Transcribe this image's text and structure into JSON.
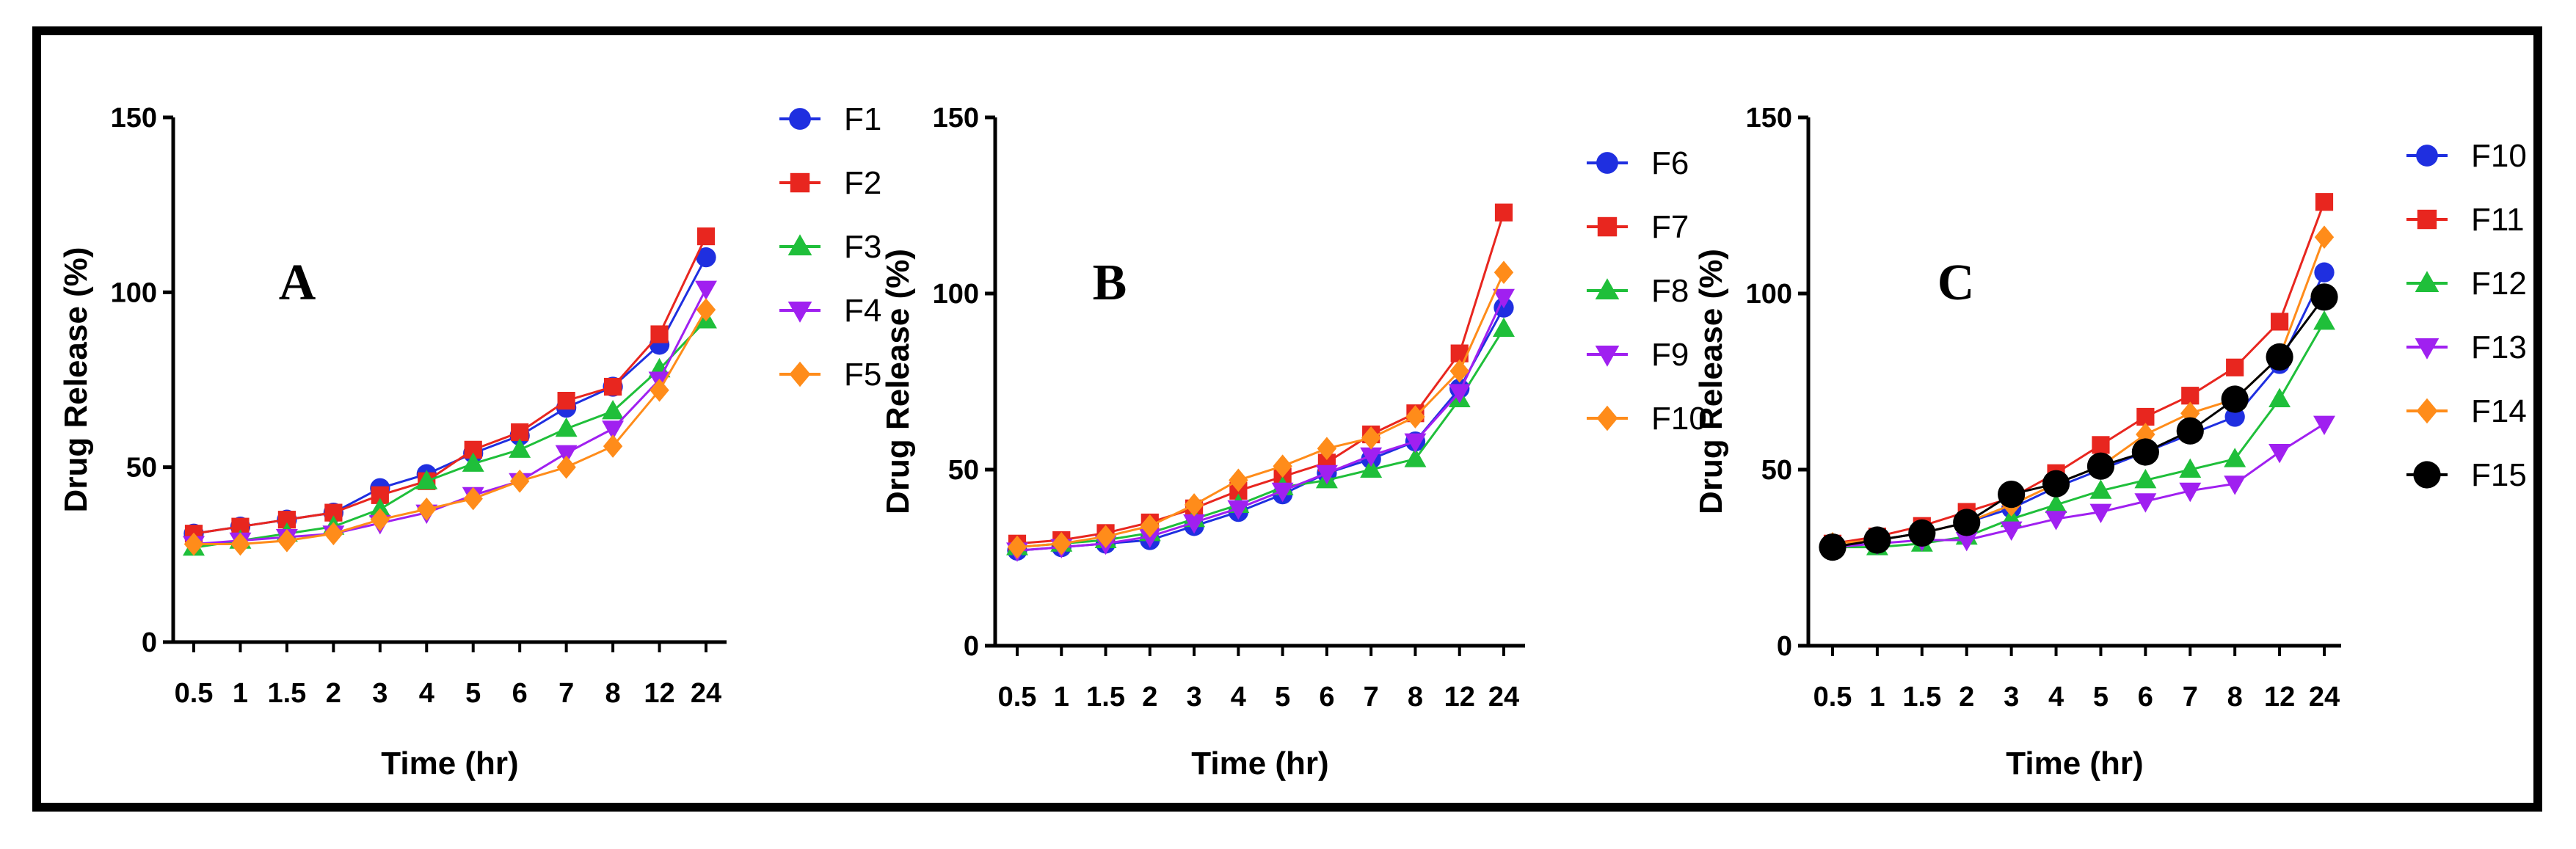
{
  "chart_data": [
    {
      "type": "line",
      "panel_label": "A",
      "xlabel": "Time (hr)",
      "ylabel": "Drug Release (%)",
      "categories": [
        "0.5",
        "1",
        "1.5",
        "2",
        "3",
        "4",
        "5",
        "6",
        "7",
        "8",
        "12",
        "24"
      ],
      "ylim": [
        0,
        150
      ],
      "yticks": [
        0,
        50,
        100,
        150
      ],
      "legend": "right",
      "series": [
        {
          "name": "F1",
          "color": "#1f2fe0",
          "marker": "circle",
          "values": [
            31,
            33,
            35,
            37,
            44,
            48,
            54,
            59,
            67,
            73,
            85,
            110
          ]
        },
        {
          "name": "F2",
          "color": "#e8261f",
          "marker": "square",
          "values": [
            31,
            33,
            35,
            37,
            42,
            46,
            55,
            60,
            69,
            73,
            88,
            116
          ]
        },
        {
          "name": "F3",
          "color": "#1fbf3a",
          "marker": "triangle-up",
          "values": [
            27,
            29,
            31,
            33,
            38,
            46,
            51,
            55,
            61,
            66,
            78,
            92
          ]
        },
        {
          "name": "F4",
          "color": "#a020f0",
          "marker": "triangle-down",
          "values": [
            28,
            29,
            30,
            31,
            34,
            37,
            42,
            46,
            54,
            61,
            75,
            101
          ]
        },
        {
          "name": "F5",
          "color": "#ff8c1a",
          "marker": "diamond",
          "values": [
            28,
            28,
            29,
            31,
            35,
            38,
            41,
            46,
            50,
            56,
            72,
            95
          ]
        }
      ]
    },
    {
      "type": "line",
      "panel_label": "B",
      "xlabel": "Time (hr)",
      "ylabel": "Drug Release (%)",
      "categories": [
        "0.5",
        "1",
        "1.5",
        "2",
        "3",
        "4",
        "5",
        "6",
        "7",
        "8",
        "12",
        "24"
      ],
      "ylim": [
        0,
        150
      ],
      "yticks": [
        0,
        50,
        100,
        150
      ],
      "legend": "right",
      "series": [
        {
          "name": "F6",
          "color": "#1f2fe0",
          "marker": "circle",
          "values": [
            27,
            28,
            29,
            30,
            34,
            38,
            43,
            49,
            53,
            58,
            73,
            96
          ]
        },
        {
          "name": "F7",
          "color": "#e8261f",
          "marker": "square",
          "values": [
            29,
            30,
            32,
            35,
            39,
            44,
            48,
            52,
            60,
            66,
            83,
            123
          ]
        },
        {
          "name": "F8",
          "color": "#1fbf3a",
          "marker": "triangle-up",
          "values": [
            28,
            29,
            30,
            32,
            36,
            40,
            45,
            47,
            50,
            53,
            70,
            90
          ]
        },
        {
          "name": "F9",
          "color": "#a020f0",
          "marker": "triangle-down",
          "values": [
            27,
            28,
            29,
            31,
            35,
            39,
            44,
            49,
            54,
            58,
            72,
            99
          ]
        },
        {
          "name": "F10",
          "color": "#ff8c1a",
          "marker": "diamond",
          "values": [
            28,
            29,
            31,
            34,
            40,
            47,
            51,
            56,
            59,
            65,
            78,
            106
          ]
        }
      ]
    },
    {
      "type": "line",
      "panel_label": "C",
      "xlabel": "Time (hr)",
      "ylabel": "Drug Release (%)",
      "categories": [
        "0.5",
        "1",
        "1.5",
        "2",
        "3",
        "4",
        "5",
        "6",
        "7",
        "8",
        "12",
        "24"
      ],
      "ylim": [
        0,
        150
      ],
      "yticks": [
        0,
        50,
        100,
        150
      ],
      "legend": "right",
      "series": [
        {
          "name": "F10",
          "color": "#1f2fe0",
          "marker": "circle",
          "values": [
            28,
            30,
            32,
            35,
            39,
            45,
            50,
            55,
            60,
            65,
            80,
            106
          ]
        },
        {
          "name": "F11",
          "color": "#e8261f",
          "marker": "square",
          "values": [
            29,
            31,
            34,
            38,
            42,
            49,
            57,
            65,
            71,
            79,
            92,
            126
          ]
        },
        {
          "name": "F12",
          "color": "#1fbf3a",
          "marker": "triangle-up",
          "values": [
            28,
            28,
            29,
            31,
            36,
            40,
            44,
            47,
            50,
            53,
            70,
            92
          ]
        },
        {
          "name": "F13",
          "color": "#a020f0",
          "marker": "triangle-down",
          "values": [
            28,
            29,
            30,
            30,
            33,
            36,
            38,
            41,
            44,
            46,
            55,
            63
          ]
        },
        {
          "name": "F14",
          "color": "#ff8c1a",
          "marker": "diamond",
          "values": [
            29,
            30,
            32,
            35,
            40,
            46,
            51,
            60,
            66,
            70,
            82,
            116
          ]
        },
        {
          "name": "F15",
          "color": "#000000",
          "marker": "circle",
          "values": [
            28,
            30,
            32,
            35,
            43,
            46,
            51,
            55,
            61,
            70,
            82,
            99
          ]
        }
      ]
    }
  ]
}
